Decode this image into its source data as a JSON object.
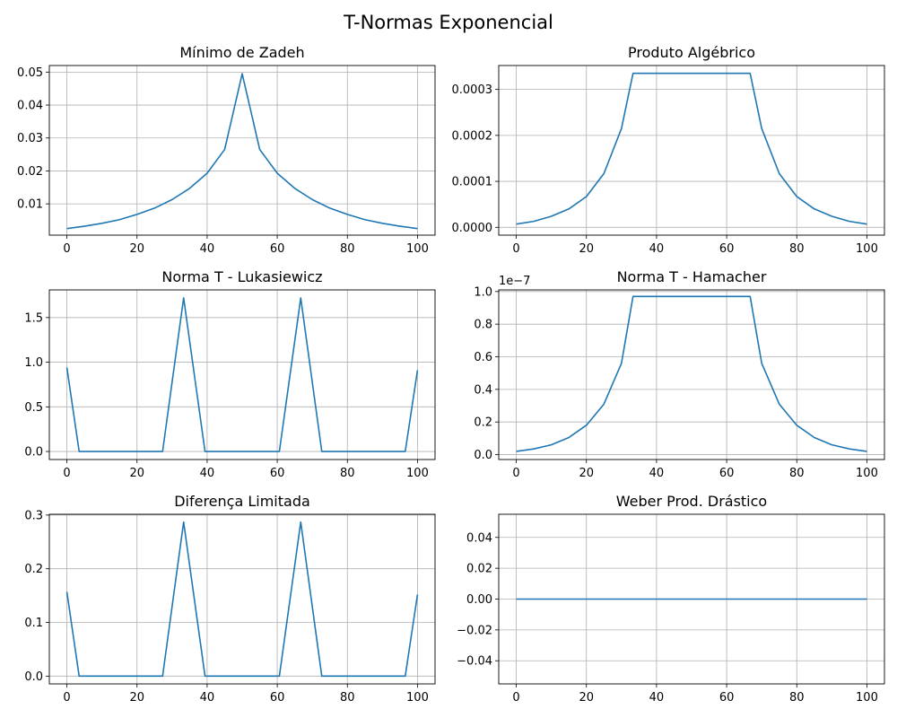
{
  "figure": {
    "title": "T-Normas Exponencial"
  },
  "colors": {
    "line": "#1f77b4",
    "grid": "#b0b0b0",
    "axes": "#000000"
  },
  "chart_data": [
    {
      "type": "line",
      "title": "Mínimo de Zadeh",
      "x": [
        0,
        5,
        10,
        15,
        20,
        25,
        30,
        35,
        40,
        45,
        50,
        55,
        60,
        65,
        70,
        75,
        80,
        85,
        90,
        95,
        100
      ],
      "series": [
        {
          "values": [
            0.0025,
            0.0032,
            0.0041,
            0.0052,
            0.0068,
            0.0087,
            0.0113,
            0.0147,
            0.0193,
            0.0265,
            0.0495,
            0.0265,
            0.0193,
            0.0147,
            0.0113,
            0.0087,
            0.0068,
            0.0052,
            0.0041,
            0.0032,
            0.0025
          ]
        }
      ],
      "xlim": [
        -5,
        105
      ],
      "ylim": [
        0.0005,
        0.052
      ],
      "xticks": [
        "0",
        "20",
        "40",
        "60",
        "80",
        "100"
      ],
      "yticks": [
        "0.01",
        "0.02",
        "0.03",
        "0.04",
        "0.05"
      ],
      "grid": true
    },
    {
      "type": "line",
      "title": "Produto Algébrico",
      "x": [
        0,
        5,
        10,
        15,
        20,
        25,
        30,
        33.3,
        40,
        50,
        60,
        66.7,
        70,
        75,
        80,
        85,
        90,
        95,
        100
      ],
      "series": [
        {
          "values": [
            7e-06,
            1.3e-05,
            2.4e-05,
            4e-05,
            6.7e-05,
            0.000117,
            0.000215,
            0.000335,
            0.000335,
            0.000335,
            0.000335,
            0.000335,
            0.000215,
            0.000117,
            6.7e-05,
            4e-05,
            2.4e-05,
            1.3e-05,
            7e-06
          ]
        }
      ],
      "xlim": [
        -5,
        105
      ],
      "ylim": [
        -1.7e-05,
        0.000352
      ],
      "xticks": [
        "0",
        "20",
        "40",
        "60",
        "80",
        "100"
      ],
      "yticks": [
        "0.0000",
        "0.0001",
        "0.0002",
        "0.0003"
      ],
      "grid": true
    },
    {
      "type": "line",
      "title": "Norma T - Lukasiewicz",
      "x": [
        0,
        3.5,
        27.3,
        33.3,
        39.4,
        60.6,
        66.7,
        72.7,
        96.5,
        100
      ],
      "series": [
        {
          "values": [
            0.94,
            0.0,
            0.0,
            1.72,
            0.0,
            0.0,
            1.72,
            0.0,
            0.0,
            0.91
          ]
        }
      ],
      "xlim": [
        -5,
        105
      ],
      "ylim": [
        -0.09,
        1.81
      ],
      "xticks": [
        "0",
        "20",
        "40",
        "60",
        "80",
        "100"
      ],
      "yticks": [
        "0.0",
        "0.5",
        "1.0",
        "1.5"
      ],
      "grid": true
    },
    {
      "type": "line",
      "title": "Norma T - Hamacher",
      "offset_label": "1e−7",
      "x": [
        0,
        5,
        10,
        15,
        20,
        25,
        30,
        33.3,
        40,
        50,
        60,
        66.7,
        70,
        75,
        80,
        85,
        90,
        95,
        100
      ],
      "series": [
        {
          "values": [
            0.02,
            0.035,
            0.06,
            0.105,
            0.18,
            0.31,
            0.56,
            0.97,
            0.97,
            0.97,
            0.97,
            0.97,
            0.56,
            0.31,
            0.18,
            0.105,
            0.06,
            0.035,
            0.02
          ]
        }
      ],
      "xlim": [
        -5,
        105
      ],
      "ylim": [
        -0.03,
        1.01
      ],
      "xticks": [
        "0",
        "20",
        "40",
        "60",
        "80",
        "100"
      ],
      "yticks": [
        "0.0",
        "0.2",
        "0.4",
        "0.6",
        "0.8",
        "1.0"
      ],
      "grid": true
    },
    {
      "type": "line",
      "title": "Diferença Limitada",
      "x": [
        0,
        3.5,
        27.3,
        33.3,
        39.4,
        60.6,
        66.7,
        72.7,
        96.5,
        100
      ],
      "series": [
        {
          "values": [
            0.157,
            0.0,
            0.0,
            0.287,
            0.0,
            0.0,
            0.287,
            0.0,
            0.0,
            0.152
          ]
        }
      ],
      "xlim": [
        -5,
        105
      ],
      "ylim": [
        -0.0145,
        0.3015
      ],
      "xticks": [
        "0",
        "20",
        "40",
        "60",
        "80",
        "100"
      ],
      "yticks": [
        "0.0",
        "0.1",
        "0.2",
        "0.3"
      ],
      "grid": true
    },
    {
      "type": "line",
      "title": "Weber Prod. Drástico",
      "x": [
        0,
        100
      ],
      "series": [
        {
          "values": [
            0.0,
            0.0
          ]
        }
      ],
      "xlim": [
        -5,
        105
      ],
      "ylim": [
        -0.055,
        0.055
      ],
      "xticks": [
        "0",
        "20",
        "40",
        "60",
        "80",
        "100"
      ],
      "yticks": [
        "−0.04",
        "−0.02",
        "0.00",
        "0.02",
        "0.04"
      ],
      "grid": true
    }
  ]
}
